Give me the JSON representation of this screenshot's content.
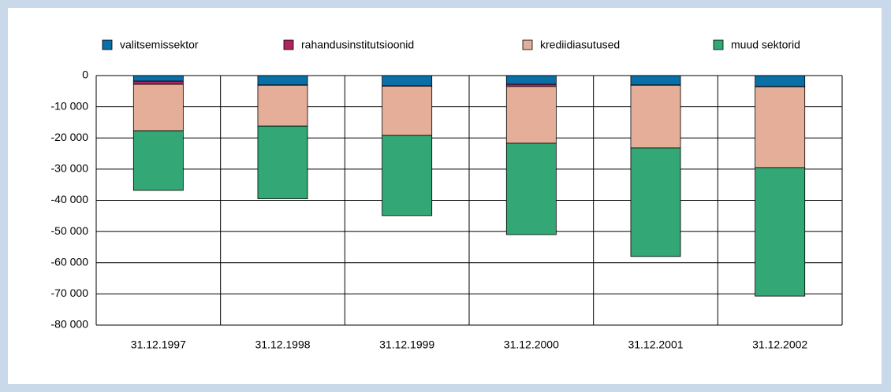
{
  "chart_data": {
    "type": "stacked_bar",
    "categories": [
      "31.12.1997",
      "31.12.1998",
      "31.12.1999",
      "31.12.2000",
      "31.12.2001",
      "31.12.2002"
    ],
    "series": [
      {
        "name": "valitsemissektor",
        "color": "#0a6fa6",
        "values": [
          -1800,
          -3000,
          -3300,
          -2800,
          -3000,
          -3500
        ]
      },
      {
        "name": "rahandusinstitutsioonid",
        "color": "#b0235f",
        "values": [
          -1000,
          -100,
          -100,
          -700,
          -100,
          -100
        ]
      },
      {
        "name": "krediidiasutused",
        "color": "#e4ae98",
        "values": [
          -14900,
          -13100,
          -15800,
          -18200,
          -20100,
          -25900
        ]
      },
      {
        "name": "muud sektorid",
        "color": "#33a775",
        "values": [
          -19100,
          -23300,
          -25700,
          -29300,
          -34800,
          -41200
        ]
      }
    ],
    "ylim": [
      -80000,
      0
    ],
    "yticks": [
      0,
      {
        "value": -10000,
        "label": "-10 000"
      },
      {
        "value": -20000,
        "label": "-20 000"
      },
      {
        "value": -30000,
        "label": "-30 000"
      },
      {
        "value": -40000,
        "label": "-40 000"
      },
      {
        "value": -50000,
        "label": "-50 000"
      },
      {
        "value": -60000,
        "label": "-60 000"
      },
      {
        "value": -70000,
        "label": "-70 000"
      },
      {
        "value": -80000,
        "label": "-80 000"
      }
    ],
    "grid": true,
    "legend": "top"
  }
}
